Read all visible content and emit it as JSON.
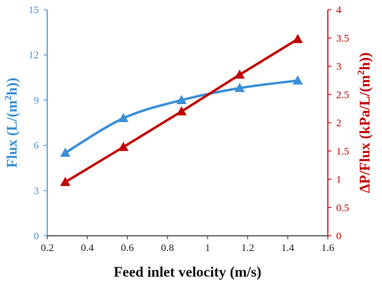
{
  "chart_data": {
    "type": "line",
    "x": [
      0.29,
      0.58,
      0.87,
      1.16,
      1.45
    ],
    "xlim": [
      0.2,
      1.6
    ],
    "xticks": [
      "0.2",
      "0.4",
      "0.6",
      "0.8",
      "1",
      "1.2",
      "1.4",
      "1.6"
    ],
    "xlabel": "Feed inlet velocity (m/s)",
    "ylabel_left": {
      "pre": "Flux (L/(m",
      "sup": "2",
      "post": "h))"
    },
    "ylabel_right": {
      "pre": "ΔP/Flux (kPa/L/(m",
      "sup": "2",
      "post": "h))"
    },
    "ylim_left": [
      0,
      15
    ],
    "yticks_left": [
      "0",
      "3",
      "6",
      "9",
      "12",
      "15"
    ],
    "ylim_right": [
      0,
      4
    ],
    "yticks_right": [
      "0",
      "0.5",
      "1",
      "1.5",
      "2",
      "2.5",
      "3",
      "3.5",
      "4"
    ],
    "series": [
      {
        "axis": "left",
        "color": "#3a8fd6",
        "marker": "triangle",
        "smooth": true,
        "values": [
          5.5,
          7.8,
          9.0,
          9.8,
          10.3
        ]
      },
      {
        "axis": "right",
        "color": "#c00000",
        "marker": "triangle",
        "smooth": false,
        "values": [
          0.95,
          1.57,
          2.2,
          2.85,
          3.48
        ]
      }
    ],
    "grid": false
  }
}
